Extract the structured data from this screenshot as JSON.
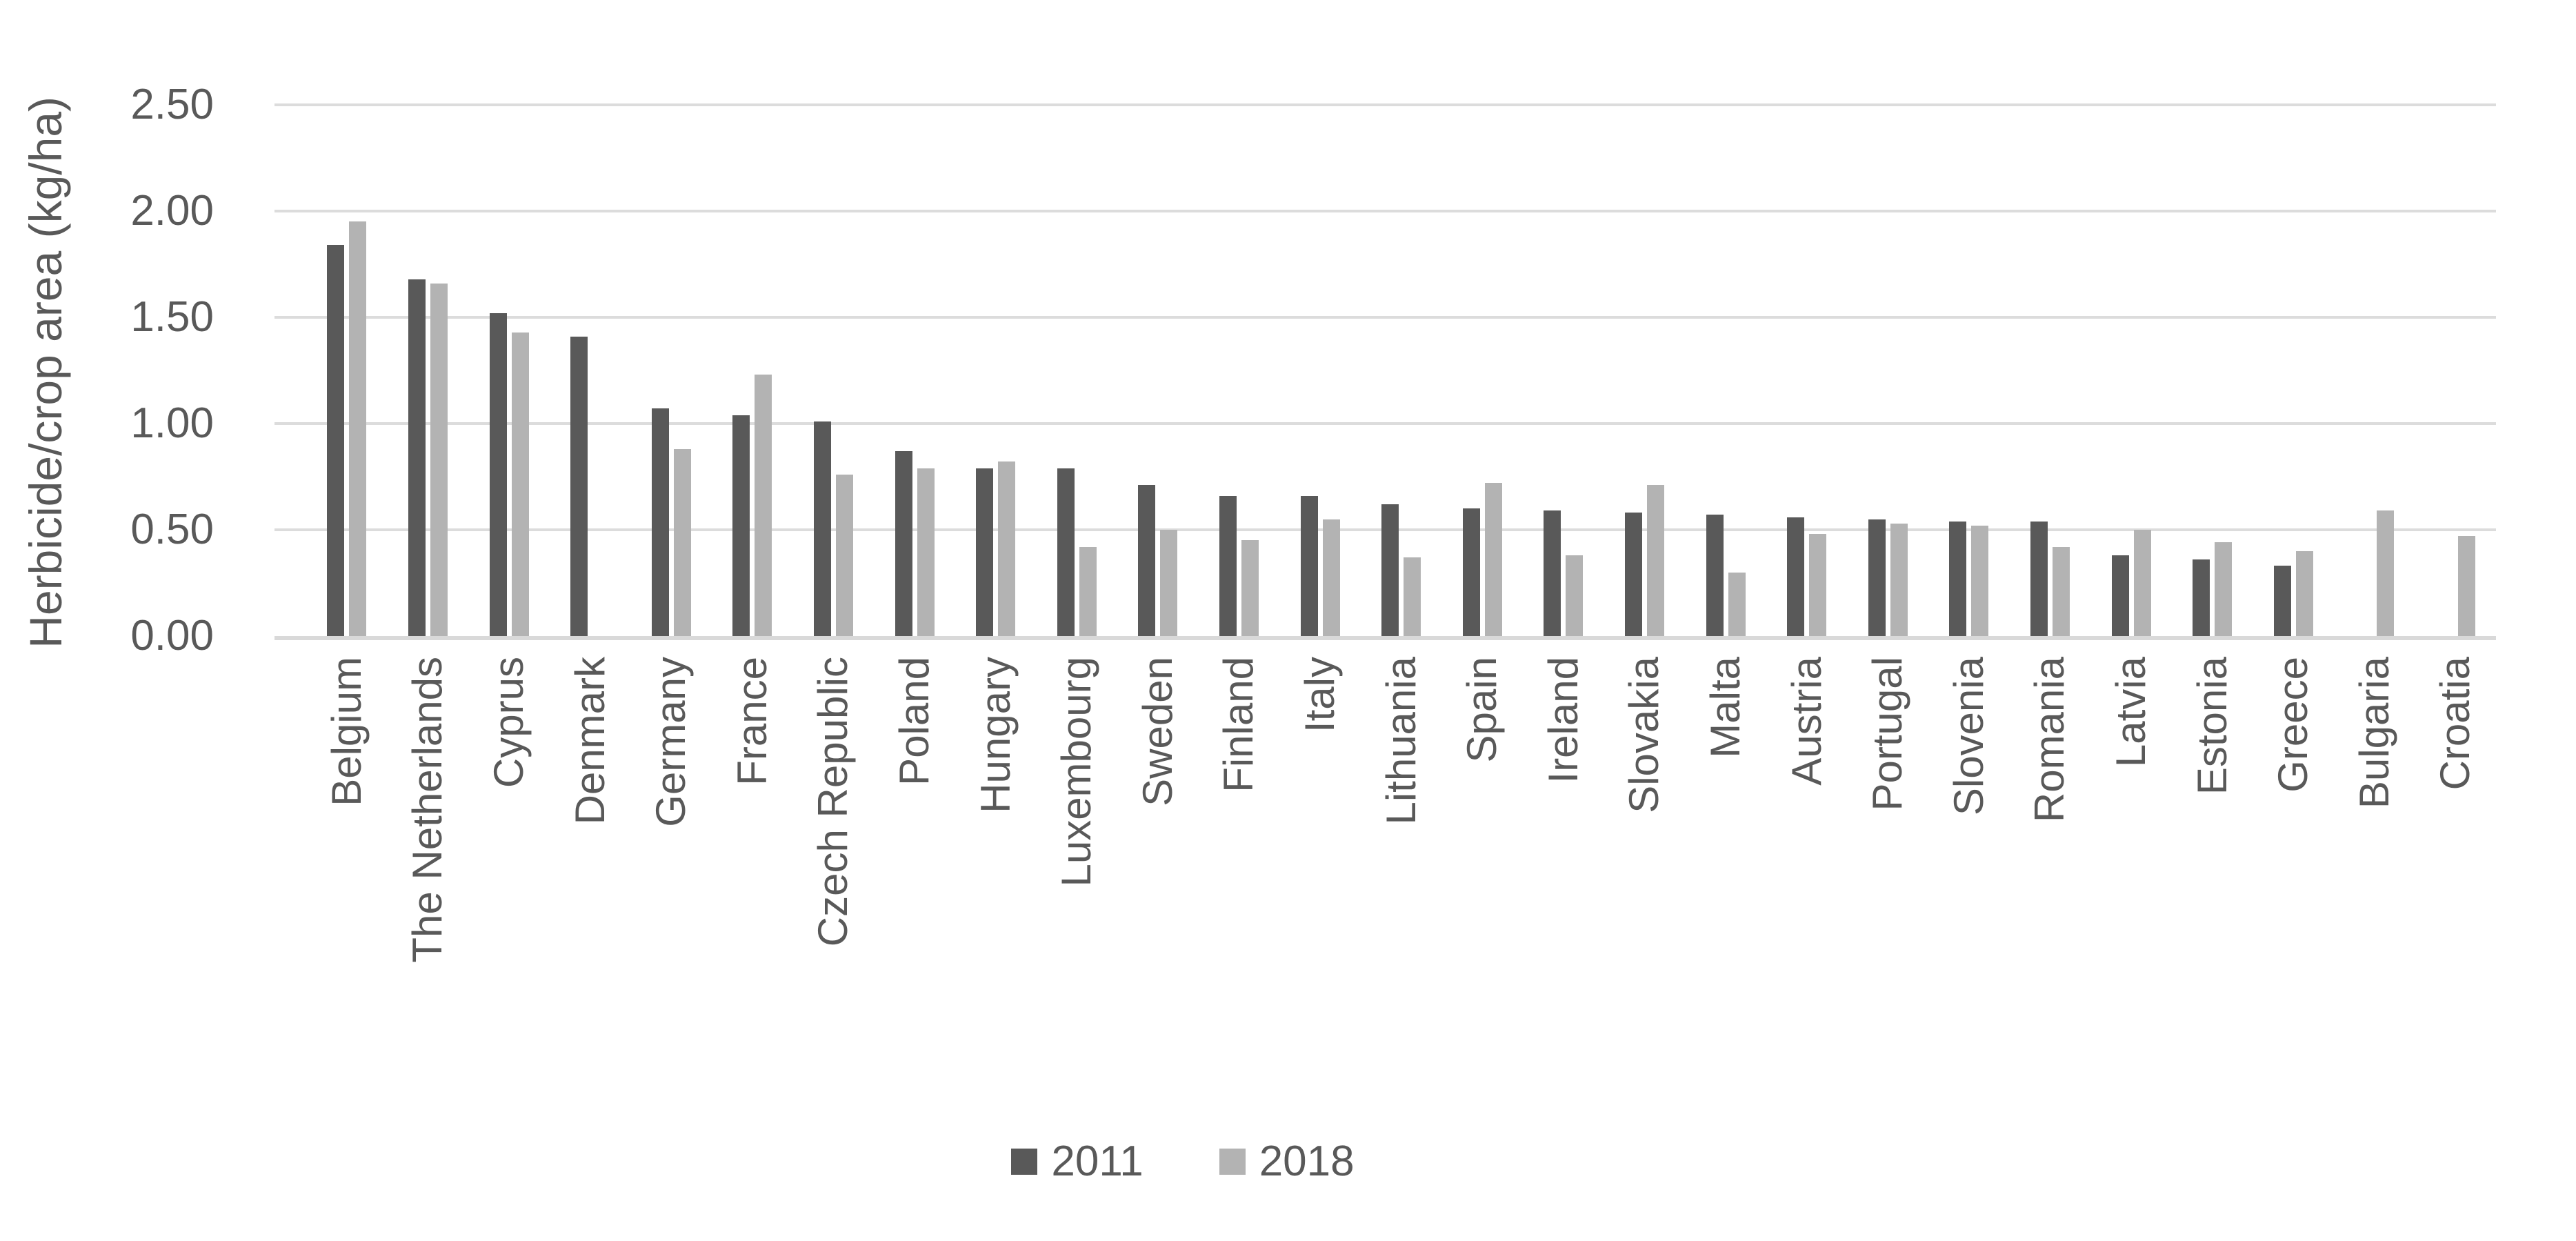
{
  "chart_data": {
    "type": "bar",
    "title": "",
    "xlabel": "",
    "ylabel": "Herbicide/crop area (kg/ha)",
    "ylim": [
      0,
      2.5
    ],
    "yticks": [
      {
        "value": 0.0,
        "label": "0.00"
      },
      {
        "value": 0.5,
        "label": "0.50"
      },
      {
        "value": 1.0,
        "label": "1.00"
      },
      {
        "value": 1.5,
        "label": "1.50"
      },
      {
        "value": 2.0,
        "label": "2.00"
      },
      {
        "value": 2.5,
        "label": "2.50"
      }
    ],
    "grid": true,
    "legend_position": "bottom",
    "categories": [
      "Belgium",
      "The Netherlands",
      "Cyprus",
      "Denmark",
      "Germany",
      "France",
      "Czech Republic",
      "Poland",
      "Hungary",
      "Luxembourg",
      "Sweden",
      "Finland",
      "Italy",
      "Lithuania",
      "Spain",
      "Ireland",
      "Slovakia",
      "Malta",
      "Austria",
      "Portugal",
      "Slovenia",
      "Romania",
      "Latvia",
      "Estonia",
      "Greece",
      "Bulgaria",
      "Croatia"
    ],
    "series": [
      {
        "name": "2011",
        "color": "#595959",
        "values": [
          1.84,
          1.68,
          1.52,
          1.41,
          1.07,
          1.04,
          1.01,
          0.87,
          0.79,
          0.79,
          0.71,
          0.66,
          0.66,
          0.62,
          0.6,
          0.59,
          0.58,
          0.57,
          0.56,
          0.55,
          0.54,
          0.54,
          0.38,
          0.36,
          0.33,
          null,
          null
        ]
      },
      {
        "name": "2018",
        "color": "#b3b3b3",
        "values": [
          1.95,
          1.66,
          1.43,
          null,
          0.88,
          1.23,
          0.76,
          0.79,
          0.82,
          0.42,
          0.5,
          0.45,
          0.55,
          0.37,
          0.72,
          0.38,
          0.71,
          0.3,
          0.48,
          0.53,
          0.52,
          0.42,
          0.5,
          0.44,
          0.4,
          0.59,
          0.47
        ]
      }
    ],
    "colors": {
      "background": "#ffffff",
      "gridline": "#dcdcdc",
      "axis_line": "#d9d9d9",
      "text": "#595959"
    }
  }
}
